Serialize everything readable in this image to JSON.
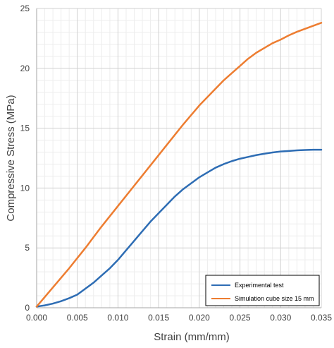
{
  "chart_data": {
    "type": "line",
    "title": "",
    "xlabel": "Strain (mm/mm)",
    "ylabel": "Compressive Stress (MPa)",
    "xlim": [
      0,
      0.035
    ],
    "ylim": [
      0,
      25
    ],
    "xticks": [
      0.0,
      0.005,
      0.01,
      0.015,
      0.02,
      0.025,
      0.03,
      0.035
    ],
    "xtick_labels": [
      "0.000",
      "0.005",
      "0.010",
      "0.015",
      "0.020",
      "0.025",
      "0.030",
      "0.035"
    ],
    "yticks": [
      0,
      5,
      10,
      15,
      20,
      25
    ],
    "ytick_labels": [
      "0",
      "5",
      "10",
      "15",
      "20",
      "25"
    ],
    "grid": true,
    "minor_grid": true,
    "legend_position": "bottom-right",
    "series": [
      {
        "name": "Experimental test",
        "color": "#2e6db4",
        "x": [
          0.0,
          0.001,
          0.002,
          0.003,
          0.004,
          0.005,
          0.006,
          0.007,
          0.008,
          0.009,
          0.01,
          0.011,
          0.012,
          0.013,
          0.014,
          0.015,
          0.016,
          0.017,
          0.018,
          0.019,
          0.02,
          0.021,
          0.022,
          0.023,
          0.024,
          0.025,
          0.026,
          0.027,
          0.028,
          0.029,
          0.03,
          0.031,
          0.032,
          0.033,
          0.034,
          0.035
        ],
        "y": [
          0.1,
          0.2,
          0.35,
          0.55,
          0.8,
          1.1,
          1.6,
          2.1,
          2.7,
          3.3,
          4.0,
          4.8,
          5.6,
          6.4,
          7.2,
          7.9,
          8.6,
          9.3,
          9.9,
          10.4,
          10.9,
          11.3,
          11.7,
          12.0,
          12.25,
          12.45,
          12.6,
          12.75,
          12.87,
          12.97,
          13.05,
          13.1,
          13.15,
          13.18,
          13.2,
          13.2
        ]
      },
      {
        "name": "Simulation cube size 15 mm",
        "color": "#ed7d31",
        "x": [
          0.0,
          0.002,
          0.004,
          0.006,
          0.008,
          0.01,
          0.012,
          0.014,
          0.016,
          0.018,
          0.02,
          0.021,
          0.022,
          0.023,
          0.024,
          0.025,
          0.026,
          0.027,
          0.028,
          0.029,
          0.03,
          0.031,
          0.032,
          0.033,
          0.034,
          0.035
        ],
        "y": [
          0.1,
          1.7,
          3.3,
          5.0,
          6.8,
          8.5,
          10.2,
          11.9,
          13.6,
          15.3,
          16.9,
          17.6,
          18.3,
          19.0,
          19.6,
          20.2,
          20.8,
          21.3,
          21.7,
          22.1,
          22.4,
          22.75,
          23.05,
          23.3,
          23.55,
          23.8
        ]
      }
    ]
  }
}
